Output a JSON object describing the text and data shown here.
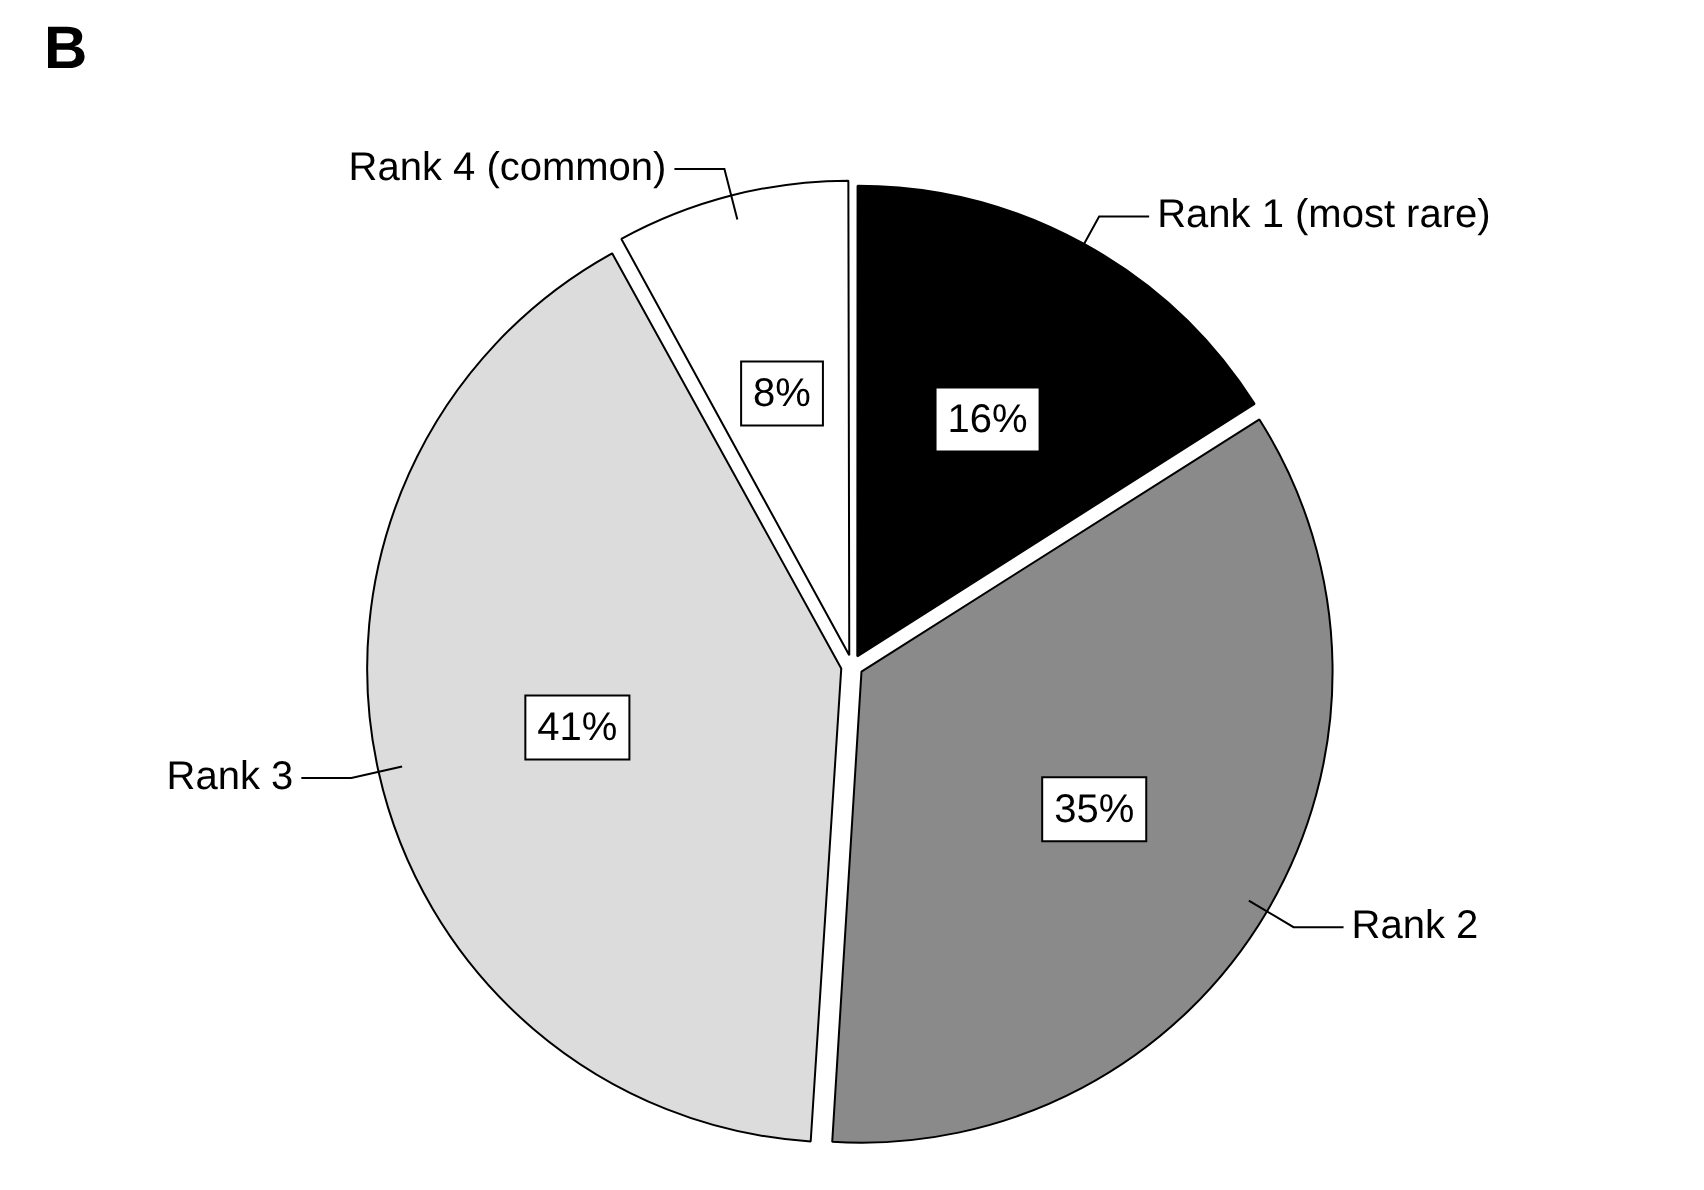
{
  "chart_data": {
    "type": "pie",
    "title": "B",
    "categories": [
      "Rank 1 (most rare)",
      "Rank 2",
      "Rank 3",
      "Rank 4 (common)"
    ],
    "values": [
      16,
      35,
      41,
      8
    ],
    "value_labels": [
      "16%",
      "35%",
      "41%",
      "8%"
    ],
    "colors": [
      "#000000",
      "#8a8a8a",
      "#dcdcdc",
      "#ffffff"
    ],
    "legend": false
  }
}
